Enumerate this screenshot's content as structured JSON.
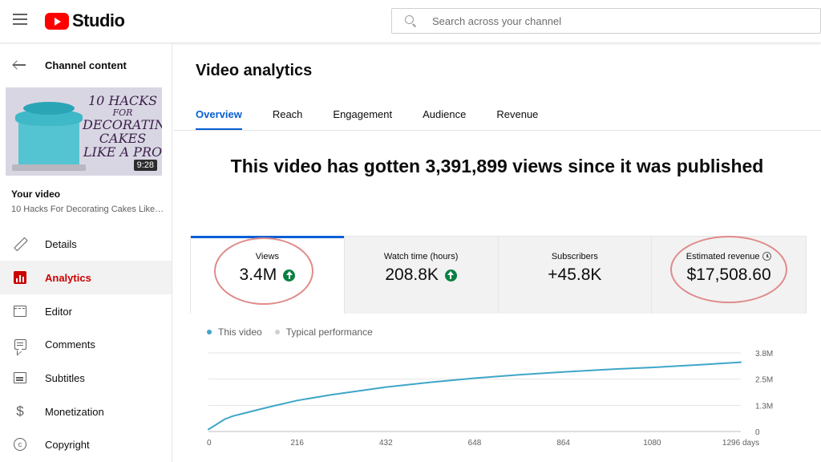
{
  "header": {
    "logo_text": "Studio",
    "search_placeholder": "Search across your channel"
  },
  "sidebar": {
    "back_label": "Channel content",
    "thumbnail": {
      "title_lines": [
        "10 HACKS",
        "FOR",
        "DECORATING",
        "CAKES",
        "LIKE A PRO"
      ],
      "duration": "9:28"
    },
    "your_video_label": "Your video",
    "video_title": "10 Hacks For Decorating Cakes Like…",
    "items": [
      {
        "label": "Details",
        "icon": "pencil-icon",
        "active": false
      },
      {
        "label": "Analytics",
        "icon": "analytics-icon",
        "active": true
      },
      {
        "label": "Editor",
        "icon": "editor-icon",
        "active": false
      },
      {
        "label": "Comments",
        "icon": "comments-icon",
        "active": false
      },
      {
        "label": "Subtitles",
        "icon": "subtitles-icon",
        "active": false
      },
      {
        "label": "Monetization",
        "icon": "dollar-icon",
        "active": false
      },
      {
        "label": "Copyright",
        "icon": "copyright-icon",
        "active": false
      }
    ]
  },
  "main": {
    "title": "Video analytics",
    "tabs": [
      {
        "label": "Overview",
        "active": true
      },
      {
        "label": "Reach",
        "active": false
      },
      {
        "label": "Engagement",
        "active": false
      },
      {
        "label": "Audience",
        "active": false
      },
      {
        "label": "Revenue",
        "active": false
      }
    ],
    "headline": "This video has gotten 3,391,899 views since it was published",
    "cards": [
      {
        "label": "Views",
        "value": "3.4M",
        "trend": "up"
      },
      {
        "label": "Watch time (hours)",
        "value": "208.8K",
        "trend": "up"
      },
      {
        "label": "Subscribers",
        "value": "+45.8K",
        "trend": null
      },
      {
        "label": "Estimated revenue",
        "value": "$17,508.60",
        "trend": null
      }
    ]
  },
  "colors": {
    "accent": "#065fd4",
    "brand_red": "#ff0000",
    "active_red": "#cc0000",
    "series_line": "#3ea6c8",
    "typical": "#cfcfcf",
    "up_green": "#0b8043",
    "annotation_circle": "#e08b8b"
  },
  "chart_data": {
    "type": "line",
    "legend": [
      "This video",
      "Typical performance"
    ],
    "x_ticks": [
      "0",
      "216",
      "432",
      "648",
      "864",
      "1080",
      "1296 days"
    ],
    "y_ticks": [
      "0",
      "1.3M",
      "2.5M",
      "3.8M"
    ],
    "xlim": [
      0,
      1296
    ],
    "ylim": [
      0,
      3.8
    ],
    "series": [
      {
        "name": "This video",
        "x": [
          0,
          20,
          40,
          60,
          100,
          150,
          216,
          300,
          432,
          540,
          648,
          756,
          864,
          972,
          1080,
          1188,
          1296
        ],
        "y": [
          0.1,
          0.35,
          0.6,
          0.75,
          0.95,
          1.2,
          1.5,
          1.78,
          2.15,
          2.38,
          2.58,
          2.74,
          2.88,
          3.0,
          3.1,
          3.22,
          3.35
        ]
      }
    ]
  }
}
